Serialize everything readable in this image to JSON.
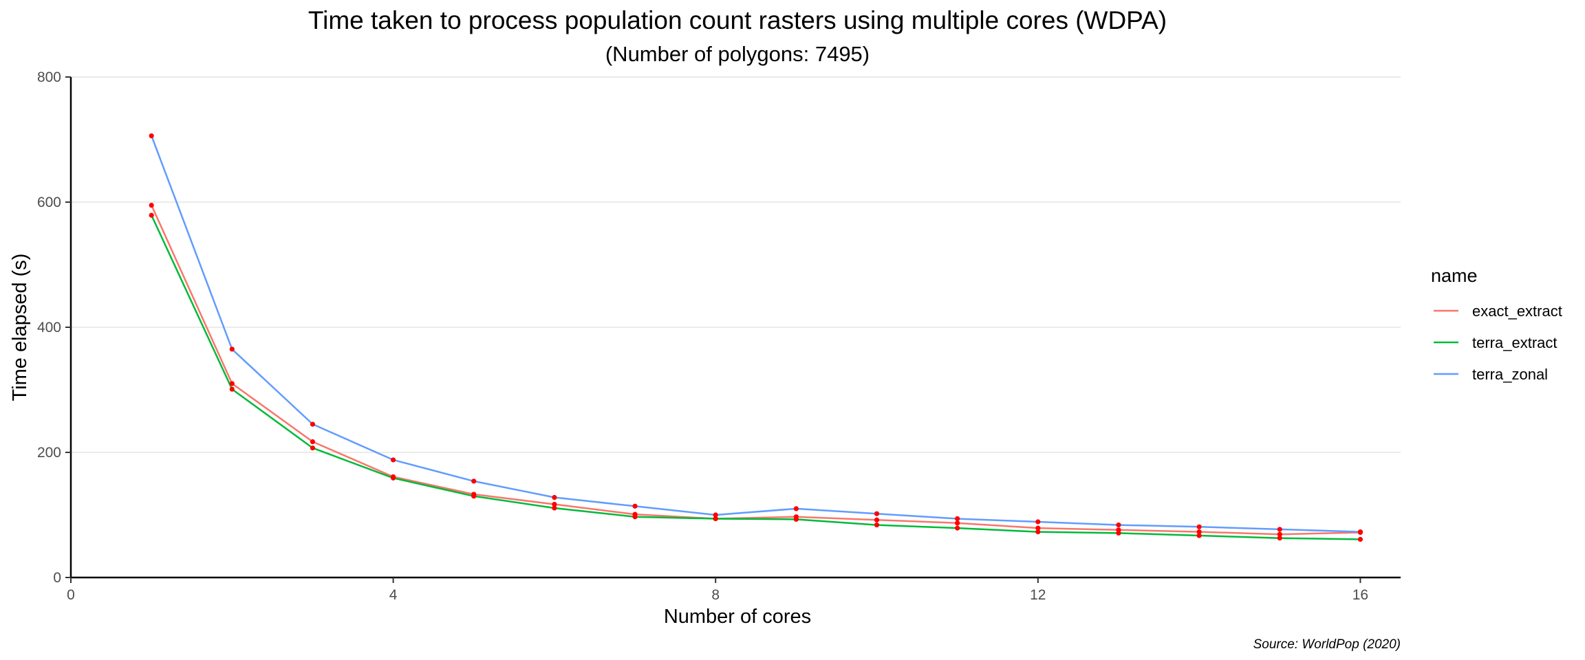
{
  "chart_data": {
    "type": "line",
    "title": "Time taken to process population count rasters using multiple cores (WDPA)",
    "subtitle": "(Number of polygons: 7495)",
    "xlabel": "Number of cores",
    "ylabel": "Time elapsed (s)",
    "caption": "Source: WorldPop (2020)",
    "xlim": [
      0,
      16.5
    ],
    "ylim": [
      0,
      800
    ],
    "xticks": [
      0,
      4,
      8,
      12,
      16
    ],
    "yticks": [
      0,
      200,
      400,
      600,
      800
    ],
    "grid": "horizontal major",
    "legend": {
      "title": "name",
      "placement": "right"
    },
    "point_color": "#ff0000",
    "x": [
      1,
      2,
      3,
      4,
      5,
      6,
      7,
      8,
      9,
      10,
      11,
      12,
      13,
      14,
      15,
      16
    ],
    "series": [
      {
        "name": "exact_extract",
        "color": "#f8766d",
        "values": [
          595,
          310,
          217,
          161,
          133,
          117,
          101,
          94,
          97,
          92,
          87,
          79,
          76,
          73,
          69,
          72
        ]
      },
      {
        "name": "terra_extract",
        "color": "#00ba38",
        "values": [
          579,
          301,
          207,
          159,
          130,
          111,
          97,
          94,
          93,
          84,
          79,
          73,
          71,
          67,
          63,
          61
        ]
      },
      {
        "name": "terra_zonal",
        "color": "#619cff",
        "values": [
          706,
          365,
          245,
          188,
          154,
          128,
          114,
          100,
          110,
          102,
          94,
          89,
          84,
          81,
          77,
          73
        ]
      }
    ]
  }
}
